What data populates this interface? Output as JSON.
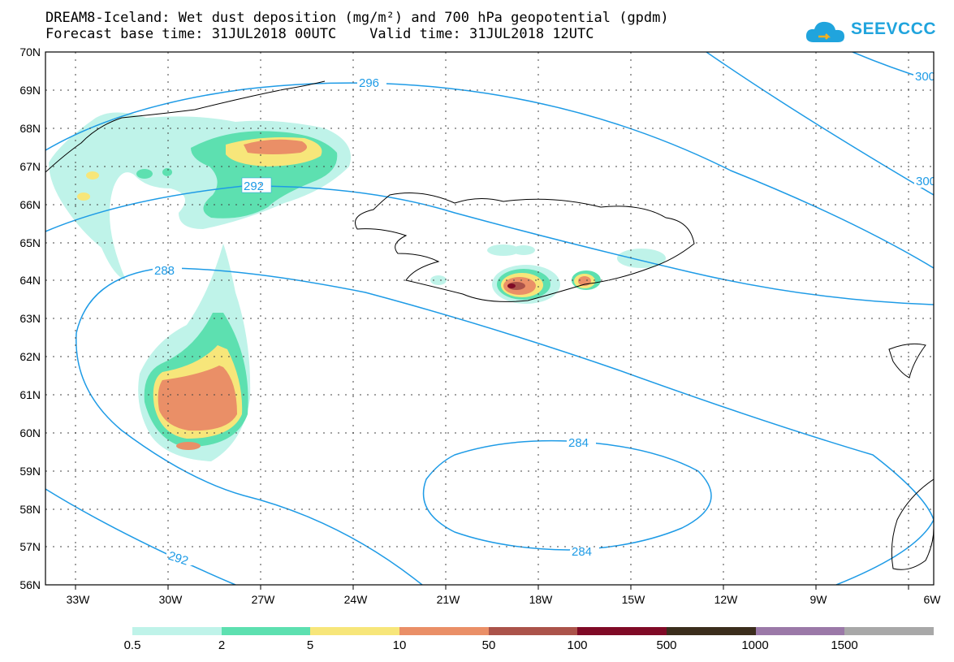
{
  "title": {
    "line1": "DREAM8-Iceland: Wet dust deposition (mg/m²) and 700 hPa geopotential (gpdm)",
    "line2": "Forecast base time: 31JUL2018 00UTC    Valid time: 31JUL2018 12UTC"
  },
  "logo": {
    "text": "SEEVCCC",
    "icon": "cloud-icon",
    "color": "#20a4dd"
  },
  "map": {
    "lat_labels": [
      "70N",
      "69N",
      "68N",
      "67N",
      "66N",
      "65N",
      "64N",
      "63N",
      "62N",
      "61N",
      "60N",
      "59N",
      "58N",
      "57N",
      "56N"
    ],
    "lon_labels": [
      "33W",
      "30W",
      "27W",
      "24W",
      "21W",
      "18W",
      "15W",
      "12W",
      "9W",
      "6W"
    ],
    "contour_color": "#1e9be6",
    "contour_labels": [
      "296",
      "292",
      "288",
      "284",
      "284",
      "292",
      "300",
      "300"
    ]
  },
  "legend": {
    "colors": [
      "#bff3e9",
      "#5de0b0",
      "#f7e67a",
      "#ea8f67",
      "#ab534a",
      "#7f0a26",
      "#3b2d1c",
      "#9b79a8",
      "#a8a8a8"
    ],
    "labels": [
      "0.5",
      "2",
      "5",
      "10",
      "50",
      "100",
      "500",
      "1000",
      "1500"
    ]
  }
}
